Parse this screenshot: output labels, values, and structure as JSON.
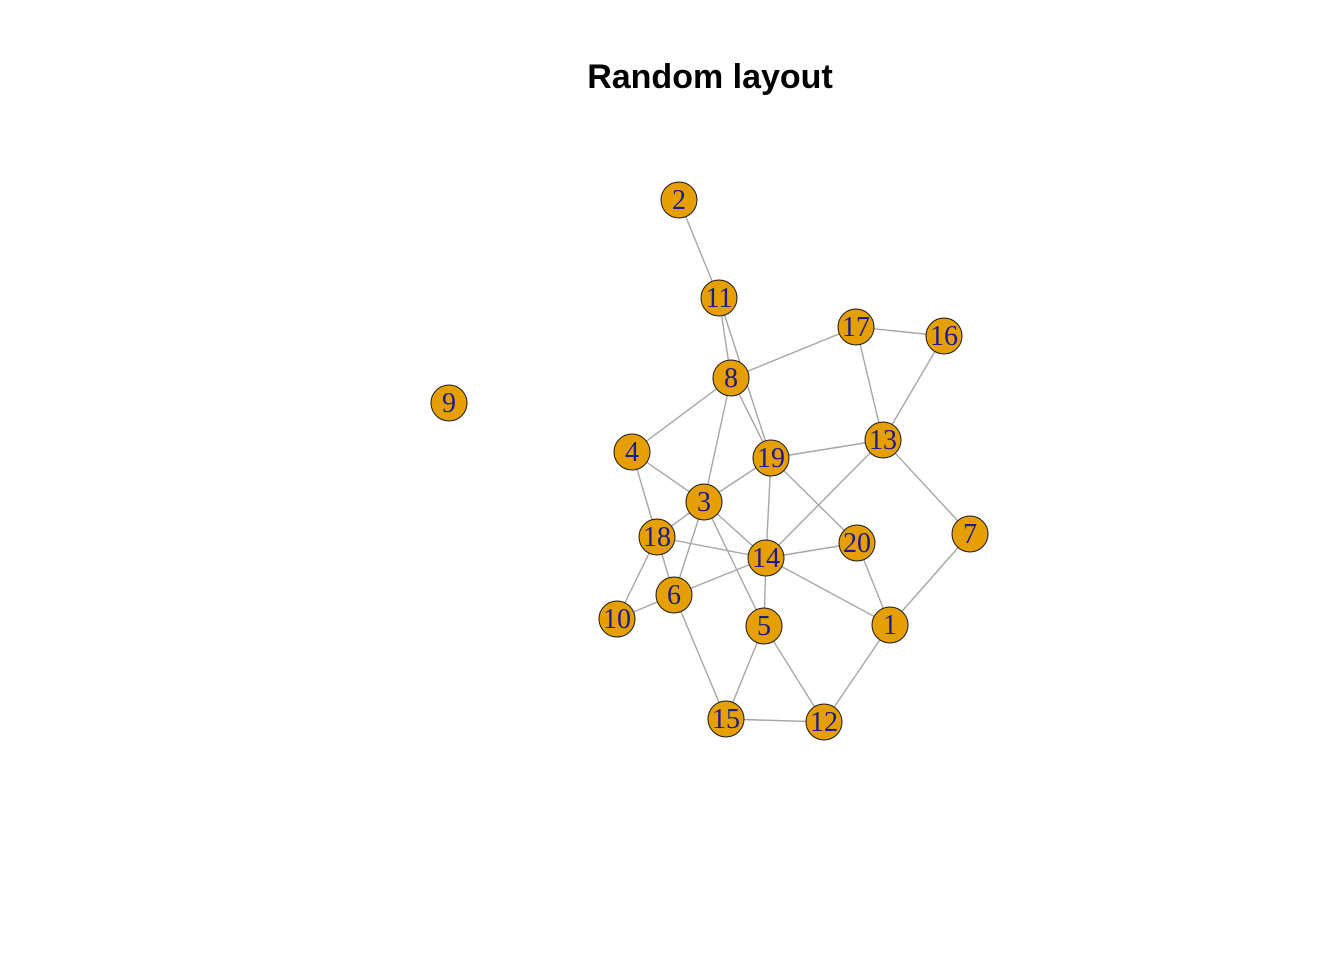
{
  "title": "Random layout",
  "colors": {
    "node_fill": "#E69F00",
    "node_stroke": "#1a1a1a",
    "label": "#1c1c8c",
    "edge": "#a6a6a6",
    "background": "#ffffff"
  },
  "nodes": [
    "1",
    "2",
    "3",
    "4",
    "5",
    "6",
    "7",
    "8",
    "9",
    "10",
    "11",
    "12",
    "13",
    "14",
    "15",
    "16",
    "17",
    "18",
    "19",
    "20"
  ],
  "edges": [
    [
      "2",
      "11"
    ],
    [
      "11",
      "8"
    ],
    [
      "11",
      "19"
    ],
    [
      "8",
      "17"
    ],
    [
      "17",
      "16"
    ],
    [
      "17",
      "13"
    ],
    [
      "16",
      "13"
    ],
    [
      "8",
      "4"
    ],
    [
      "8",
      "3"
    ],
    [
      "8",
      "19"
    ],
    [
      "4",
      "3"
    ],
    [
      "4",
      "18"
    ],
    [
      "19",
      "13"
    ],
    [
      "19",
      "3"
    ],
    [
      "19",
      "14"
    ],
    [
      "19",
      "20"
    ],
    [
      "13",
      "14"
    ],
    [
      "13",
      "7"
    ],
    [
      "3",
      "18"
    ],
    [
      "3",
      "6"
    ],
    [
      "3",
      "14"
    ],
    [
      "3",
      "5"
    ],
    [
      "18",
      "14"
    ],
    [
      "18",
      "6"
    ],
    [
      "18",
      "10"
    ],
    [
      "14",
      "20"
    ],
    [
      "14",
      "6"
    ],
    [
      "14",
      "5"
    ],
    [
      "14",
      "1"
    ],
    [
      "20",
      "1"
    ],
    [
      "7",
      "1"
    ],
    [
      "6",
      "10"
    ],
    [
      "6",
      "15"
    ],
    [
      "5",
      "15"
    ],
    [
      "5",
      "12"
    ],
    [
      "15",
      "12"
    ],
    [
      "1",
      "12"
    ]
  ]
}
